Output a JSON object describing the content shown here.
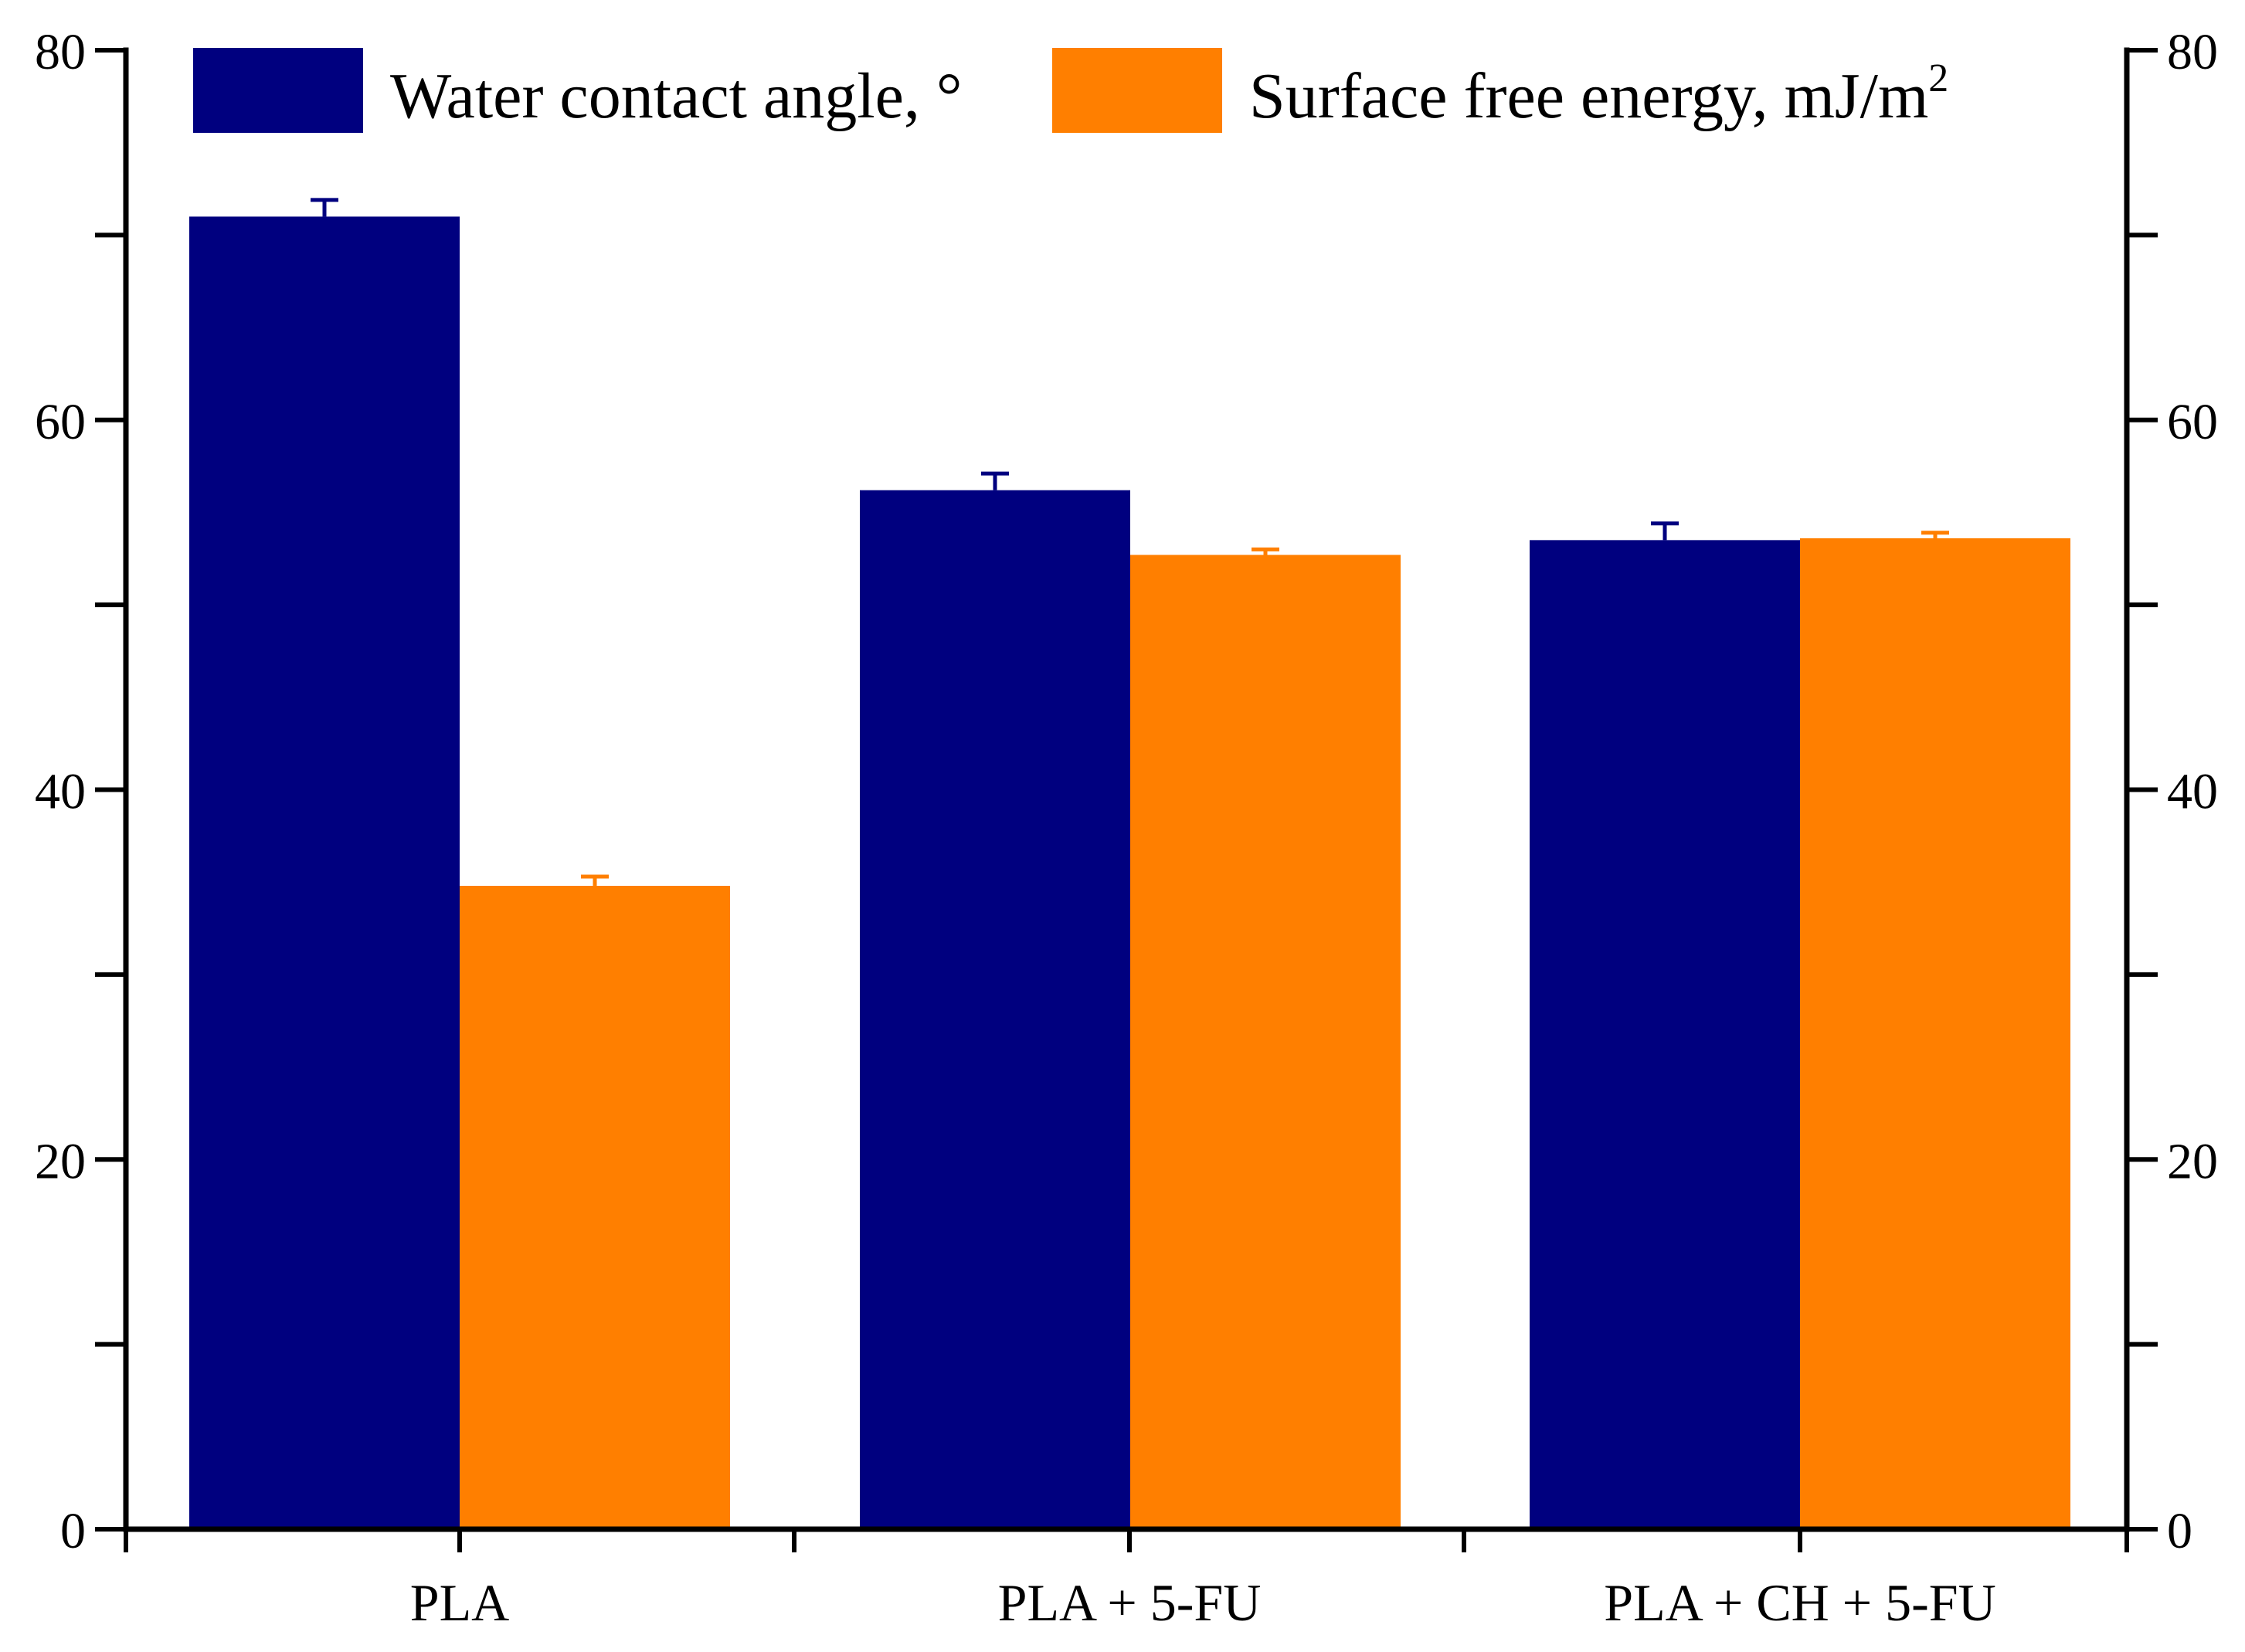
{
  "chart_data": {
    "type": "bar",
    "categories": [
      "PLA",
      "PLA + 5-FU",
      "PLA + CH + 5-FU"
    ],
    "series": [
      {
        "name": "Water contact angle, °",
        "color": "#00007f",
        "values": [
          71.0,
          56.2,
          53.5
        ],
        "errors": [
          0.9,
          0.9,
          0.9
        ]
      },
      {
        "name": "Surface free energy, mJ/m",
        "name_sup": "2",
        "color": "#ff7f00",
        "values": [
          34.8,
          52.7,
          53.6
        ],
        "errors": [
          0.5,
          0.3,
          0.3
        ]
      }
    ],
    "left_axis": {
      "range": [
        0,
        80
      ],
      "tick_labels": [
        "0",
        "20",
        "40",
        "60",
        "80"
      ],
      "minor_step": 10
    },
    "right_axis": {
      "range": [
        0,
        80
      ],
      "tick_labels": [
        "0",
        "20",
        "40",
        "60",
        "80"
      ],
      "minor_step": 10
    },
    "xlabel": "",
    "ylabel": "",
    "title": "",
    "legend_position": "top",
    "grid": false
  }
}
